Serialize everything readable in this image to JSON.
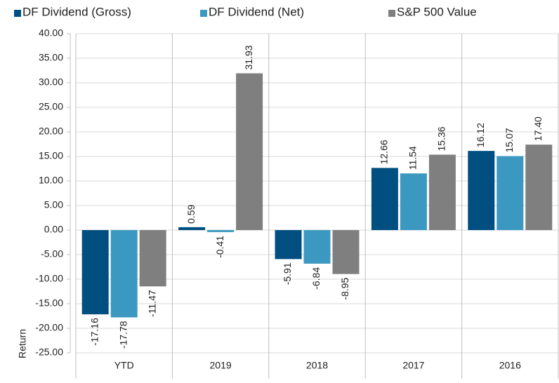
{
  "chart_data": {
    "type": "bar",
    "y_label": "Return",
    "legend": "top",
    "grid": true,
    "categories": [
      "YTD",
      "2019",
      "2018",
      "2017",
      "2016"
    ],
    "series": [
      {
        "name": "DF Dividend (Gross)",
        "color": "#004f80",
        "values": [
          -17.16,
          0.59,
          -5.91,
          12.66,
          16.12
        ],
        "value_labels": [
          "-17.16",
          "0.59",
          "-5.91",
          "12.66",
          "16.12"
        ]
      },
      {
        "name": "DF Dividend (Net)",
        "color": "#3b98c0",
        "values": [
          -17.78,
          -0.41,
          -6.84,
          11.54,
          15.07
        ],
        "value_labels": [
          "-17.78",
          "-0.41",
          "-6.84",
          "11.54",
          "15.07"
        ]
      },
      {
        "name": "S&P 500 Value",
        "color": "#7f7f7f",
        "values": [
          -11.47,
          31.93,
          -8.95,
          15.36,
          17.4
        ],
        "value_labels": [
          "-11.47",
          "31.93",
          "-8.95",
          "15.36",
          "17.40"
        ]
      }
    ],
    "ylim": [
      -25,
      40
    ],
    "yticks": [
      {
        "value": -25,
        "label": "-25.00"
      },
      {
        "value": -20,
        "label": "-20.00"
      },
      {
        "value": -15,
        "label": "-15.00"
      },
      {
        "value": -10,
        "label": "-10.00"
      },
      {
        "value": -5,
        "label": "-5.00"
      },
      {
        "value": 0,
        "label": "0.00"
      },
      {
        "value": 5,
        "label": "5.00"
      },
      {
        "value": 10,
        "label": "10.00"
      },
      {
        "value": 15,
        "label": "15.00"
      },
      {
        "value": 20,
        "label": "20.00"
      },
      {
        "value": 25,
        "label": "25.00"
      },
      {
        "value": 30,
        "label": "30.00"
      },
      {
        "value": 35,
        "label": "35.00"
      },
      {
        "value": 40,
        "label": "40.00"
      }
    ]
  }
}
